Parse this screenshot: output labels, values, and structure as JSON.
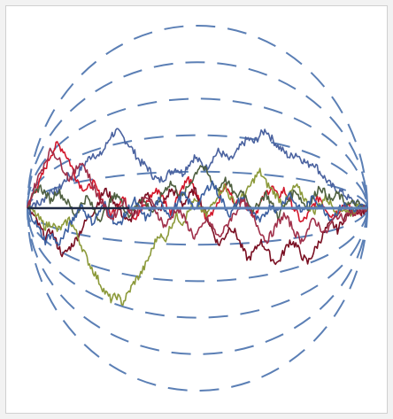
{
  "chart_data": {
    "type": "line",
    "grid": false,
    "legend": "none",
    "colors": {
      "band": "#5b7fb5",
      "axis": "#1f2a44",
      "series": [
        "#4b63a0",
        "#d2172b",
        "#7a0f22",
        "#8c9a3a",
        "#4f6040",
        "#3b5fa0",
        "#a0304a"
      ]
    },
    "x_range": [
      0,
      1
    ],
    "y_range": [
      -1,
      1
    ],
    "envelope_bands": [
      1.0,
      0.8,
      0.6,
      0.4,
      0.2
    ],
    "series": [
      {
        "values": [
          0.0,
          0.03,
          0.02,
          0.06,
          0.1,
          0.09,
          0.14,
          0.18,
          0.16,
          0.22,
          0.26,
          0.3,
          0.28,
          0.33,
          0.4,
          0.42,
          0.39,
          0.35,
          0.3,
          0.25,
          0.23,
          0.18,
          0.15,
          0.17,
          0.2,
          0.22,
          0.19,
          0.24,
          0.28,
          0.25,
          0.22,
          0.27,
          0.31,
          0.29,
          0.26,
          0.3,
          0.35,
          0.38,
          0.36,
          0.4,
          0.43,
          0.38,
          0.34,
          0.31,
          0.28,
          0.3,
          0.27,
          0.24,
          0.25,
          0.2,
          0.16,
          0.12,
          0.1,
          0.08,
          0.05,
          0.03,
          0.02,
          0.0
        ]
      },
      {
        "values": [
          0.0,
          0.08,
          0.14,
          0.22,
          0.3,
          0.35,
          0.32,
          0.26,
          0.18,
          0.12,
          0.1,
          0.14,
          0.08,
          0.02,
          -0.04,
          0.02,
          0.06,
          0.0,
          -0.05,
          -0.02,
          0.03,
          0.08,
          0.1,
          0.04,
          -0.02,
          0.05,
          0.12,
          0.16,
          0.1,
          0.02,
          -0.06,
          -0.02,
          0.04,
          0.12,
          0.08,
          0.02,
          0.06,
          0.0,
          -0.04,
          0.02,
          0.08,
          0.12,
          0.06,
          0.1,
          0.04,
          -0.02,
          -0.08,
          -0.04,
          0.02,
          0.06,
          0.0,
          -0.04,
          -0.02,
          0.02,
          0.0,
          -0.03,
          -0.01,
          0.0
        ]
      },
      {
        "values": [
          0.0,
          -0.04,
          -0.1,
          -0.16,
          -0.12,
          -0.2,
          -0.26,
          -0.22,
          -0.18,
          -0.12,
          -0.06,
          -0.02,
          0.04,
          0.1,
          0.06,
          0.02,
          -0.04,
          -0.08,
          -0.02,
          0.04,
          0.08,
          0.02,
          -0.02,
          0.04,
          0.1,
          0.08,
          0.02,
          0.06,
          0.1,
          0.04,
          -0.04,
          -0.12,
          -0.2,
          -0.16,
          -0.1,
          -0.14,
          -0.22,
          -0.28,
          -0.24,
          -0.18,
          -0.22,
          -0.28,
          -0.3,
          -0.24,
          -0.18,
          -0.2,
          -0.26,
          -0.3,
          -0.24,
          -0.18,
          -0.12,
          -0.08,
          -0.12,
          -0.06,
          -0.02,
          0.0,
          -0.02,
          0.0
        ]
      },
      {
        "values": [
          0.0,
          -0.02,
          -0.06,
          -0.1,
          -0.08,
          -0.12,
          -0.1,
          -0.06,
          -0.12,
          -0.2,
          -0.28,
          -0.34,
          -0.4,
          -0.46,
          -0.5,
          -0.48,
          -0.52,
          -0.46,
          -0.4,
          -0.36,
          -0.3,
          -0.22,
          -0.14,
          -0.18,
          -0.1,
          -0.04,
          -0.08,
          -0.02,
          0.04,
          0.0,
          -0.04,
          0.02,
          0.08,
          0.12,
          0.06,
          0.02,
          0.06,
          0.1,
          0.16,
          0.2,
          0.14,
          0.1,
          0.06,
          0.02,
          0.08,
          0.12,
          0.08,
          0.02,
          -0.02,
          0.02,
          0.06,
          0.02,
          -0.02,
          0.0,
          -0.03,
          -0.01,
          0.02,
          0.0
        ]
      },
      {
        "values": [
          0.0,
          0.06,
          0.12,
          0.08,
          0.04,
          0.1,
          0.06,
          0.02,
          -0.04,
          0.02,
          0.06,
          0.0,
          -0.06,
          -0.02,
          0.04,
          0.08,
          0.02,
          -0.04,
          0.0,
          0.06,
          0.02,
          -0.02,
          0.04,
          0.1,
          0.14,
          0.1,
          0.06,
          0.12,
          0.18,
          0.24,
          0.2,
          0.14,
          0.1,
          0.16,
          0.12,
          0.06,
          0.1,
          0.04,
          -0.02,
          0.04,
          0.08,
          0.02,
          -0.04,
          0.0,
          0.06,
          0.1,
          0.04,
          0.0,
          0.06,
          0.12,
          0.08,
          0.04,
          0.08,
          0.04,
          0.02,
          0.03,
          0.01,
          0.0
        ]
      },
      {
        "values": [
          0.0,
          -0.06,
          -0.12,
          -0.18,
          -0.14,
          -0.2,
          -0.16,
          -0.1,
          -0.04,
          0.02,
          -0.04,
          -0.08,
          -0.02,
          0.02,
          -0.04,
          -0.1,
          -0.06,
          0.0,
          0.04,
          -0.02,
          -0.06,
          0.0,
          0.04,
          0.0,
          -0.04,
          0.02,
          0.08,
          0.04,
          0.0,
          0.04,
          0.1,
          0.14,
          0.08,
          0.02,
          -0.04,
          0.02,
          0.06,
          0.0,
          -0.04,
          -0.08,
          -0.02,
          0.02,
          -0.02,
          0.04,
          0.08,
          0.02,
          -0.02,
          0.02,
          0.06,
          0.02,
          -0.02,
          -0.06,
          -0.02,
          0.02,
          0.0,
          -0.02,
          0.01,
          0.0
        ]
      },
      {
        "values": [
          0.0,
          0.1,
          0.18,
          0.26,
          0.32,
          0.28,
          0.22,
          0.16,
          0.2,
          0.26,
          0.2,
          0.12,
          0.06,
          0.0,
          -0.06,
          -0.02,
          0.04,
          0.0,
          -0.04,
          0.02,
          0.06,
          0.02,
          -0.04,
          -0.1,
          -0.06,
          0.0,
          -0.04,
          -0.1,
          -0.16,
          -0.12,
          -0.06,
          -0.1,
          -0.16,
          -0.12,
          -0.06,
          -0.02,
          0.04,
          0.0,
          -0.06,
          -0.12,
          -0.18,
          -0.14,
          -0.08,
          -0.04,
          -0.08,
          -0.14,
          -0.18,
          -0.12,
          -0.06,
          -0.1,
          -0.14,
          -0.08,
          -0.04,
          -0.06,
          -0.02,
          -0.04,
          -0.01,
          0.0
        ]
      }
    ]
  }
}
